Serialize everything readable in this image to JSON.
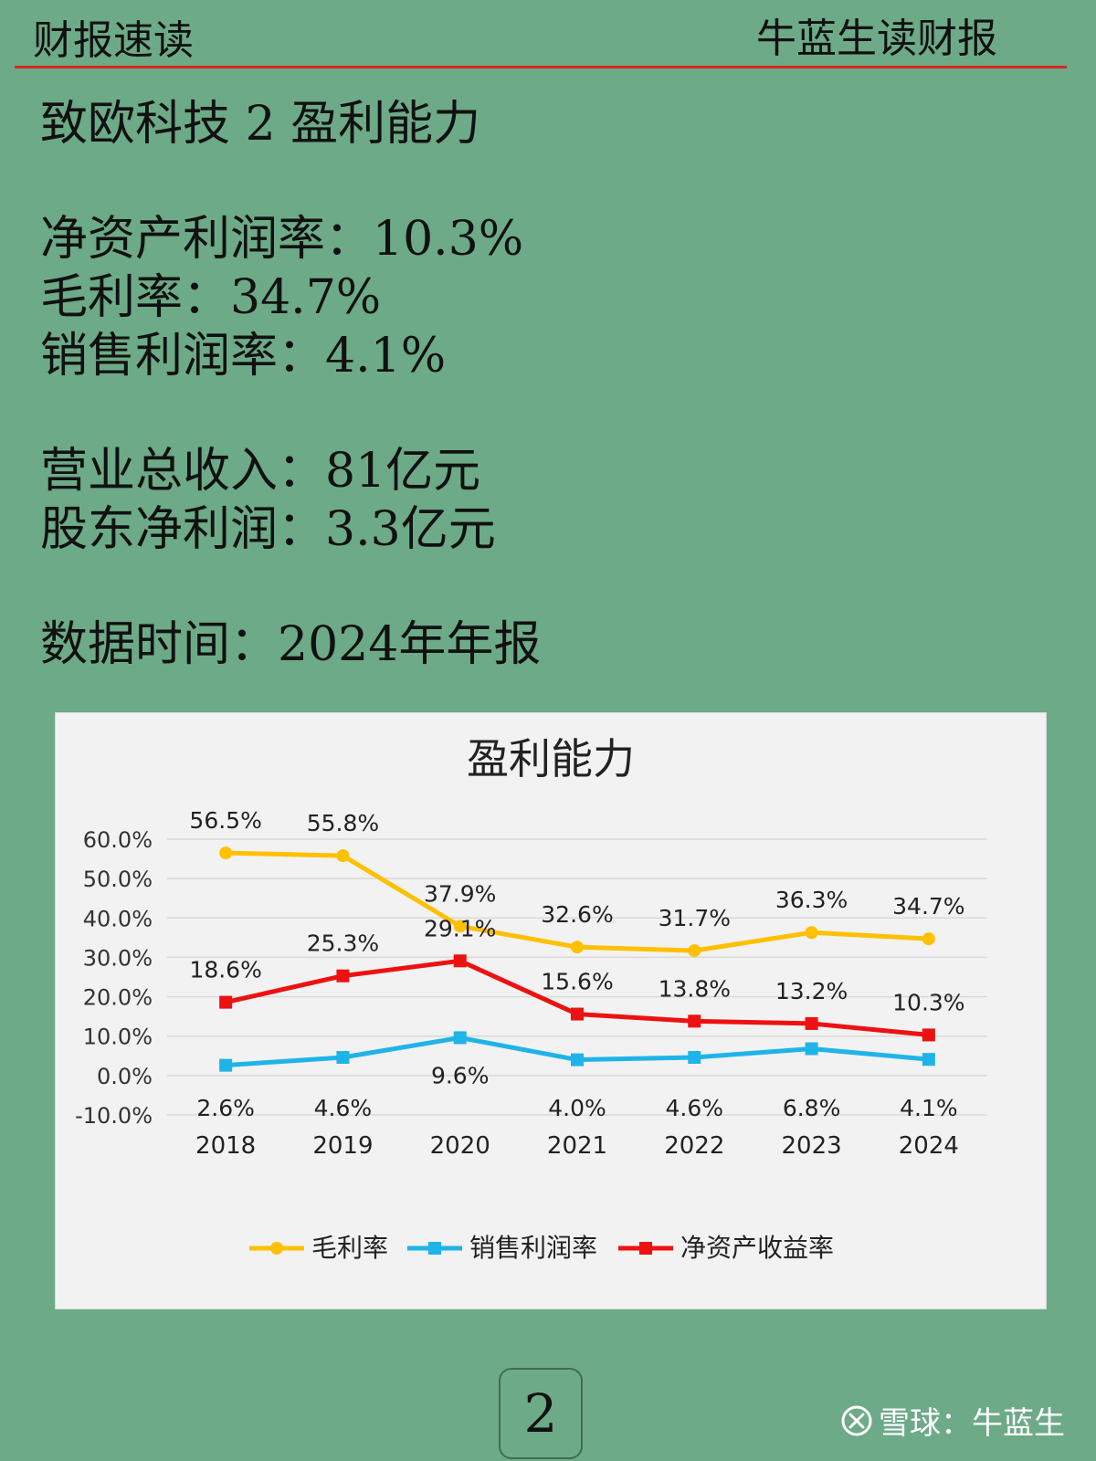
{
  "header": {
    "left": "财报速读",
    "right": "牛蓝生读财报"
  },
  "heading": "致欧科技 2 盈利能力",
  "metrics": [
    {
      "label": "净资产利润率：",
      "value": "10.3%"
    },
    {
      "label": "毛利率：",
      "value": "34.7%"
    },
    {
      "label": "销售利润率：",
      "value": "4.1%"
    }
  ],
  "financials": [
    {
      "label": "营业总收入：",
      "value": "81亿元"
    },
    {
      "label": "股东净利润：",
      "value": "3.3亿元"
    }
  ],
  "data_time": {
    "label": "数据时间：",
    "value": "2024年年报"
  },
  "chart_data": {
    "type": "line",
    "title": "盈利能力",
    "categories": [
      "2018",
      "2019",
      "2020",
      "2021",
      "2022",
      "2023",
      "2024"
    ],
    "ylim": [
      -10,
      60
    ],
    "yticks": [
      60,
      50,
      40,
      30,
      20,
      10,
      0,
      -10
    ],
    "ytick_labels": [
      "60.0%",
      "50.0%",
      "40.0%",
      "30.0%",
      "20.0%",
      "10.0%",
      "0.0%",
      "-10.0%"
    ],
    "legend_position": "bottom",
    "series": [
      {
        "name": "毛利率",
        "color": "#ffc000",
        "marker": "circle",
        "values": [
          56.5,
          55.8,
          37.9,
          32.6,
          31.7,
          36.3,
          34.7
        ],
        "labels": [
          "56.5%",
          "55.8%",
          "37.9%",
          "32.6%",
          "31.7%",
          "36.3%",
          "34.7%"
        ]
      },
      {
        "name": "销售利润率",
        "color": "#1fb4e8",
        "marker": "square",
        "values": [
          2.6,
          4.6,
          9.6,
          4.0,
          4.6,
          6.8,
          4.1
        ],
        "labels": [
          "2.6%",
          "4.6%",
          "9.6%",
          "4.0%",
          "4.6%",
          "6.8%",
          "4.1%"
        ]
      },
      {
        "name": "净资产收益率",
        "color": "#ee1111",
        "marker": "square",
        "values": [
          18.6,
          25.3,
          29.1,
          15.6,
          13.8,
          13.2,
          10.3
        ],
        "labels": [
          "18.6%",
          "25.3%",
          "29.1%",
          "15.6%",
          "13.8%",
          "13.2%",
          "10.3%"
        ]
      }
    ]
  },
  "page_number": "2",
  "watermark": {
    "text": "雪球：牛蓝生",
    "icon": "xueqiu-logo-icon"
  }
}
